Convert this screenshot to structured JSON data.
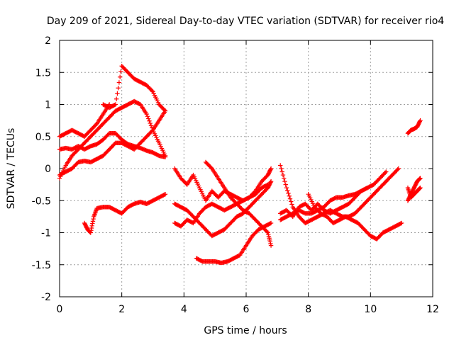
{
  "chart_data": {
    "type": "scatter",
    "title": "Day 209 of 2021, Sidereal Day-to-day VTEC variation (SDTVAR) for receiver rio4",
    "xlabel": "GPS time / hours",
    "ylabel": "SDTVAR / TECUs",
    "xlim": [
      0,
      12
    ],
    "ylim": [
      -2,
      2
    ],
    "xticks": [
      0,
      2,
      4,
      6,
      8,
      10,
      12
    ],
    "yticks": [
      -2,
      -1.5,
      -1,
      -0.5,
      0,
      0.5,
      1,
      1.5,
      2
    ],
    "grid": true,
    "marker": "+",
    "color": "#ff0000",
    "series": [
      {
        "x": [
          0,
          0.2,
          0.4,
          0.6,
          0.8,
          1.0,
          1.2,
          1.4,
          1.6,
          1.8,
          2.0,
          2.2,
          2.4,
          2.6,
          2.8,
          3.0,
          3.2,
          3.4
        ],
        "y": [
          -0.15,
          0.05,
          0.2,
          0.3,
          0.4,
          0.5,
          0.6,
          0.7,
          0.8,
          0.9,
          0.95,
          1.0,
          1.05,
          1.0,
          0.85,
          0.6,
          0.4,
          0.2
        ]
      },
      {
        "x": [
          0,
          0.2,
          0.4,
          0.6,
          0.8,
          1.0,
          1.2,
          1.4,
          1.6,
          1.8,
          2.0,
          2.2,
          2.4,
          2.6,
          2.8,
          3.0,
          3.2,
          3.4
        ],
        "y": [
          0.3,
          0.32,
          0.3,
          0.35,
          0.3,
          0.35,
          0.38,
          0.45,
          0.55,
          0.55,
          0.45,
          0.38,
          0.35,
          0.32,
          0.28,
          0.25,
          0.2,
          0.18
        ]
      },
      {
        "x": [
          0,
          0.2,
          0.4,
          0.6,
          0.8,
          1.0,
          1.2,
          1.4,
          1.6,
          1.8,
          2.0,
          2.2,
          2.4,
          2.6,
          2.8,
          3.0,
          3.2,
          3.4
        ],
        "y": [
          -0.1,
          -0.05,
          0.0,
          0.1,
          0.12,
          0.1,
          0.15,
          0.2,
          0.3,
          0.4,
          0.4,
          0.35,
          0.3,
          0.4,
          0.5,
          0.6,
          0.75,
          0.9
        ]
      },
      {
        "x": [
          0,
          0.2,
          0.4,
          0.6,
          0.8,
          1.0,
          1.2,
          1.4,
          1.6
        ],
        "y": [
          0.5,
          0.55,
          0.6,
          0.55,
          0.5,
          0.6,
          0.7,
          0.85,
          1.0
        ]
      },
      {
        "x": [
          1.4,
          1.6,
          1.8,
          2.0,
          2.2,
          2.4,
          2.6,
          2.8,
          3.0,
          3.2,
          3.4
        ],
        "y": [
          1.0,
          0.95,
          1.0,
          1.6,
          1.5,
          1.4,
          1.35,
          1.3,
          1.2,
          1.0,
          0.9
        ]
      },
      {
        "x": [
          0.8,
          0.9,
          1.0,
          1.1,
          1.2,
          1.4,
          1.6,
          1.8,
          2.0,
          2.2,
          2.4,
          2.6,
          2.8,
          3.0,
          3.2,
          3.4
        ],
        "y": [
          -0.85,
          -0.95,
          -1.0,
          -0.75,
          -0.62,
          -0.6,
          -0.6,
          -0.65,
          -0.7,
          -0.6,
          -0.55,
          -0.52,
          -0.55,
          -0.5,
          -0.45,
          -0.4
        ]
      },
      {
        "x": [
          3.7,
          3.9,
          4.1,
          4.3,
          4.5,
          4.7,
          4.9,
          5.1,
          5.3,
          5.5,
          5.7,
          5.9,
          6.1,
          6.3,
          6.5,
          6.7,
          6.8
        ],
        "y": [
          -0.85,
          -0.9,
          -0.8,
          -0.85,
          -0.7,
          -0.6,
          -0.55,
          -0.6,
          -0.65,
          -0.6,
          -0.55,
          -0.5,
          -0.45,
          -0.35,
          -0.2,
          -0.1,
          0.0
        ]
      },
      {
        "x": [
          3.7,
          3.9,
          4.1,
          4.3,
          4.5,
          4.7,
          4.9,
          5.1,
          5.3,
          5.5,
          5.7,
          5.9,
          6.1,
          6.3,
          6.5,
          6.7,
          6.8
        ],
        "y": [
          -0.55,
          -0.6,
          -0.65,
          -0.75,
          -0.85,
          -0.95,
          -1.05,
          -1.0,
          -0.95,
          -0.85,
          -0.75,
          -0.7,
          -0.6,
          -0.5,
          -0.4,
          -0.3,
          -0.2
        ]
      },
      {
        "x": [
          3.7,
          3.9,
          4.1,
          4.3,
          4.5,
          4.7,
          4.9,
          5.1,
          5.3,
          5.5,
          5.7,
          5.9,
          6.1,
          6.3,
          6.5,
          6.7
        ],
        "y": [
          0.0,
          -0.15,
          -0.25,
          -0.1,
          -0.3,
          -0.5,
          -0.35,
          -0.45,
          -0.35,
          -0.4,
          -0.45,
          -0.5,
          -0.45,
          -0.4,
          -0.3,
          -0.25
        ]
      },
      {
        "x": [
          4.4,
          4.6,
          4.8,
          5.0,
          5.2,
          5.4,
          5.6,
          5.8,
          6.0,
          6.2,
          6.4,
          6.6,
          6.8
        ],
        "y": [
          -1.4,
          -1.45,
          -1.45,
          -1.45,
          -1.47,
          -1.45,
          -1.4,
          -1.35,
          -1.2,
          -1.05,
          -0.95,
          -0.9,
          -0.85
        ]
      },
      {
        "x": [
          4.7,
          4.9,
          5.1,
          5.3,
          5.5,
          5.7,
          5.9,
          6.1,
          6.3,
          6.5,
          6.7,
          6.8
        ],
        "y": [
          0.1,
          0.0,
          -0.15,
          -0.3,
          -0.45,
          -0.55,
          -0.65,
          -0.7,
          -0.8,
          -0.9,
          -1.0,
          -1.2
        ]
      },
      {
        "x": [
          7.1,
          7.3,
          7.5,
          7.7,
          7.9,
          8.1,
          8.3,
          8.5,
          8.7,
          8.9,
          9.1,
          9.3,
          9.5,
          9.7,
          9.9,
          10.1,
          10.3,
          10.5
        ],
        "y": [
          -0.8,
          -0.75,
          -0.7,
          -0.65,
          -0.7,
          -0.7,
          -0.65,
          -0.6,
          -0.5,
          -0.45,
          -0.45,
          -0.42,
          -0.4,
          -0.35,
          -0.3,
          -0.25,
          -0.15,
          -0.05
        ]
      },
      {
        "x": [
          7.1,
          7.3,
          7.5,
          7.7,
          7.9,
          8.1,
          8.3,
          8.5,
          8.7,
          8.9,
          9.1,
          9.3,
          9.5,
          9.7,
          9.9,
          10.1,
          10.3,
          10.5,
          10.7,
          10.9
        ],
        "y": [
          0.05,
          -0.3,
          -0.6,
          -0.75,
          -0.85,
          -0.8,
          -0.75,
          -0.7,
          -0.65,
          -0.7,
          -0.75,
          -0.75,
          -0.7,
          -0.6,
          -0.5,
          -0.4,
          -0.3,
          -0.2,
          -0.1,
          0.0
        ]
      },
      {
        "x": [
          7.1,
          7.3,
          7.5,
          7.7,
          7.9,
          8.1,
          8.3,
          8.5,
          8.7,
          8.9,
          9.1,
          9.3,
          9.5,
          9.7,
          9.9
        ],
        "y": [
          -0.7,
          -0.65,
          -0.75,
          -0.6,
          -0.55,
          -0.65,
          -0.55,
          -0.65,
          -0.7,
          -0.65,
          -0.6,
          -0.55,
          -0.45,
          -0.35,
          -0.3
        ]
      },
      {
        "x": [
          8.0,
          8.2,
          8.4,
          8.6,
          8.8,
          9.0,
          9.2,
          9.4,
          9.6,
          9.8,
          10.0,
          10.2,
          10.4,
          10.6,
          10.8,
          11.0
        ],
        "y": [
          -0.4,
          -0.6,
          -0.7,
          -0.75,
          -0.85,
          -0.8,
          -0.75,
          -0.8,
          -0.85,
          -0.95,
          -1.05,
          -1.1,
          -1.0,
          -0.95,
          -0.9,
          -0.85
        ]
      },
      {
        "x": [
          11.2,
          11.3,
          11.4,
          11.5,
          11.6
        ],
        "y": [
          0.55,
          0.6,
          0.62,
          0.65,
          0.75
        ]
      },
      {
        "x": [
          11.2,
          11.3,
          11.4,
          11.5,
          11.6
        ],
        "y": [
          -0.5,
          -0.4,
          -0.3,
          -0.2,
          -0.15
        ]
      },
      {
        "x": [
          11.2,
          11.3,
          11.4,
          11.5,
          11.6
        ],
        "y": [
          -0.3,
          -0.45,
          -0.4,
          -0.35,
          -0.3
        ]
      }
    ]
  }
}
